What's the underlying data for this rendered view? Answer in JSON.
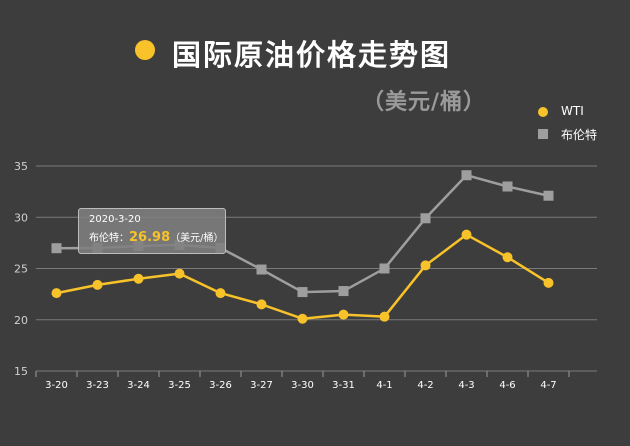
{
  "title": "国际原油价格走势图",
  "subtitle": "（美元/桶）",
  "colors": {
    "background": "#3d3d3d",
    "wti": "#f8c22a",
    "brent": "#9e9e9e",
    "grid": "#7a7a7a",
    "text": "#ffffff"
  },
  "tooltip": {
    "date": "2020-3-20",
    "label": "布伦特：",
    "value": "26.98",
    "unit": "（美元/桶）"
  },
  "chart_data": {
    "type": "line",
    "title": "国际原油价格走势图",
    "subtitle": "（美元/桶）",
    "categories": [
      "3-20",
      "3-23",
      "3-24",
      "3-25",
      "3-26",
      "3-27",
      "3-30",
      "3-31",
      "4-1",
      "4-2",
      "4-3",
      "4-6",
      "4-7"
    ],
    "series": [
      {
        "name": "WTI",
        "marker": "circle",
        "values": [
          22.6,
          23.4,
          24.0,
          24.5,
          22.6,
          21.5,
          20.1,
          20.5,
          20.3,
          25.3,
          28.3,
          26.1,
          23.6
        ]
      },
      {
        "name": "布伦特",
        "marker": "square",
        "values": [
          26.98,
          27.0,
          27.2,
          27.3,
          27.0,
          24.9,
          22.7,
          22.8,
          25.0,
          29.9,
          34.1,
          33.0,
          32.1
        ]
      }
    ],
    "y_ticks": [
      15,
      20,
      25,
      30,
      35
    ],
    "ylim": [
      15,
      35
    ],
    "grid": true,
    "legend_position": "top-right"
  }
}
